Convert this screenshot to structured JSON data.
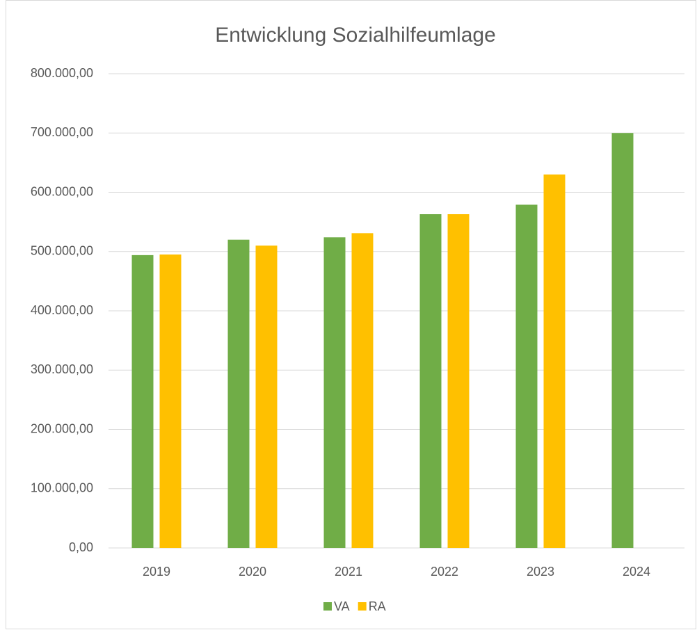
{
  "chart_data": {
    "type": "bar",
    "title": "Entwicklung Sozialhilfeumlage",
    "categories": [
      "2019",
      "2020",
      "2021",
      "2022",
      "2023",
      "2024"
    ],
    "series": [
      {
        "name": "VA",
        "color": "#70ad47",
        "values": [
          494000,
          520000,
          524000,
          563000,
          579000,
          700000
        ]
      },
      {
        "name": "RA",
        "color": "#ffc000",
        "values": [
          495000,
          510000,
          531000,
          563000,
          630000,
          null
        ]
      }
    ],
    "ylim": [
      0,
      800000
    ],
    "yticks": [
      {
        "value": 0,
        "label": "0,00"
      },
      {
        "value": 100000,
        "label": "100.000,00"
      },
      {
        "value": 200000,
        "label": "200.000,00"
      },
      {
        "value": 300000,
        "label": "300.000,00"
      },
      {
        "value": 400000,
        "label": "400.000,00"
      },
      {
        "value": 500000,
        "label": "500.000,00"
      },
      {
        "value": 600000,
        "label": "600.000,00"
      },
      {
        "value": 700000,
        "label": "700.000,00"
      },
      {
        "value": 800000,
        "label": "800.000,00"
      }
    ],
    "grid": true,
    "legend": "bottom"
  }
}
